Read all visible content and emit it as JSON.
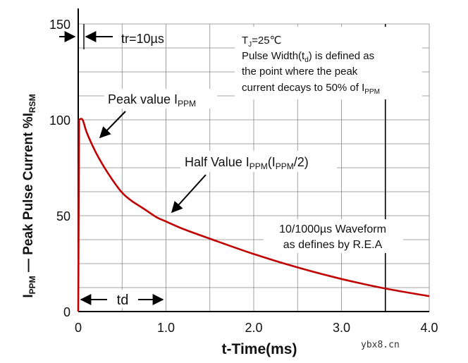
{
  "chart_data": {
    "type": "line",
    "xlabel": "t-Time(ms)",
    "ylabel": {
      "p1": "I",
      "sub1": "PPM",
      "p2": " — Peak Pulse Current  %I",
      "sub2": "RSM"
    },
    "xlim": [
      0,
      4.0
    ],
    "ylim": [
      0,
      150
    ],
    "x_ticks": [
      {
        "value": 0,
        "label": "0"
      },
      {
        "value": 1.0,
        "label": "1.0"
      },
      {
        "value": 2.0,
        "label": "2.0"
      },
      {
        "value": 3.0,
        "label": "3.0"
      },
      {
        "value": 4.0,
        "label": "4.0"
      }
    ],
    "y_ticks": [
      {
        "value": 0,
        "label": "0"
      },
      {
        "value": 50,
        "label": "50"
      },
      {
        "value": 100,
        "label": "100"
      },
      {
        "value": 150,
        "label": "150"
      }
    ],
    "grid": true,
    "grid_x_step": 0.5,
    "grid_y_step": 12.5,
    "series": [
      {
        "name": "10/1000µs pulse waveform",
        "color": "#c00000",
        "x": [
          0,
          0.01,
          0.05,
          0.1,
          0.2,
          0.3,
          0.4,
          0.5,
          0.6,
          0.7,
          0.8,
          0.9,
          1.0,
          1.2,
          1.5,
          2.0,
          2.5,
          3.0,
          3.5,
          4.0
        ],
        "y": [
          0,
          100,
          100,
          93,
          83,
          75,
          68,
          62,
          58,
          55,
          52,
          49,
          47,
          43,
          38,
          30,
          23,
          17,
          12,
          8
        ]
      }
    ],
    "markers": {
      "vertical_line_x": 3.5,
      "tr_label": "tr=10µs",
      "td_label": "td"
    },
    "annotations": {
      "peak_label": "Peak value I",
      "peak_sub": "PPM",
      "half_p1": "Half Value I",
      "half_sub1": "PPM",
      "half_p2": "(I",
      "half_sub2": "PPM",
      "half_p3": "/2)",
      "info_l1a": "T",
      "info_l1sub": "J",
      "info_l1b": "=25℃",
      "info_l2a": "Pulse Width(t",
      "info_l2sub": "d",
      "info_l2b": ") is defined as",
      "info_l3": "the point where the peak",
      "info_l4a": "current decays to 50% of I",
      "info_l4sub": "PPM",
      "waveform_l1": "10/1000µs Waveform",
      "waveform_l2": "as defines by R.E.A"
    },
    "watermark": "ybx8.cn"
  },
  "colors": {
    "curve": "#c00000",
    "grid": "#888888",
    "axis": "#000000"
  }
}
